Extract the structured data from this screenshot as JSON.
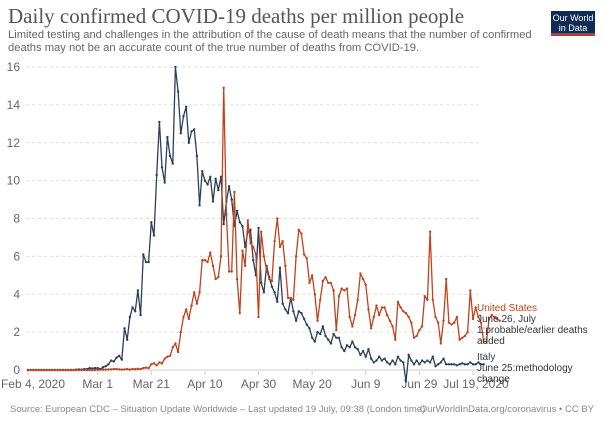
{
  "header": {
    "title": "Daily confirmed COVID-19 deaths per million people",
    "subtitle": "Limited testing and challenges in the attribution of the cause of death means that the number of confirmed deaths may not be an accurate count of the true number of deaths from COVID-19.",
    "logo_line1": "Our World",
    "logo_line2": "in Data"
  },
  "footer": {
    "source": "Source: European CDC – Situation Update Worldwide – Last updated 19 July, 09:38 (London time)",
    "link": "OurWorldInData.org/coronavirus • CC BY"
  },
  "colors": {
    "united_states": "#c0431c",
    "italy": "#2b3f5c",
    "grid": "#dddddd"
  },
  "chart_data": {
    "type": "line",
    "title": "Daily confirmed COVID-19 deaths per million people",
    "xlabel": "",
    "ylabel": "",
    "x_start": "2020-02-04",
    "x_end": "2020-07-19",
    "ylim": [
      0,
      16
    ],
    "yticks": [
      0,
      2,
      4,
      6,
      8,
      10,
      12,
      14,
      16
    ],
    "xticks": [
      {
        "label": "Feb 4, 2020",
        "day": 0
      },
      {
        "label": "Mar 1",
        "day": 26
      },
      {
        "label": "Mar 21",
        "day": 46
      },
      {
        "label": "Apr 10",
        "day": 66
      },
      {
        "label": "Apr 30",
        "day": 86
      },
      {
        "label": "May 20",
        "day": 106
      },
      {
        "label": "Jun 9",
        "day": 126
      },
      {
        "label": "Jun 29",
        "day": 146
      },
      {
        "label": "Jul 19, 2020",
        "day": 166
      }
    ],
    "grid": true,
    "series": [
      {
        "name": "Italy",
        "annotation": [
          "June 25:methodology",
          "change"
        ],
        "values": [
          0,
          0,
          0,
          0,
          0,
          0,
          0,
          0,
          0,
          0,
          0,
          0,
          0,
          0,
          0,
          0,
          0,
          0,
          0.02,
          0.03,
          0.02,
          0.05,
          0.05,
          0.1,
          0.08,
          0.1,
          0.1,
          0.05,
          0.15,
          0.2,
          0.3,
          0.5,
          0.45,
          0.65,
          0.75,
          0.55,
          2.2,
          1.6,
          2.8,
          3.3,
          3.1,
          4.2,
          2.9,
          6.1,
          5.7,
          5.7,
          7.8,
          7.1,
          10.3,
          13.1,
          10.7,
          9.9,
          12.3,
          11.3,
          10.9,
          16.0,
          14.7,
          12.5,
          13.4,
          13.9,
          12.0,
          12.6,
          12.7,
          11.3,
          8.7,
          10.5,
          10.0,
          9.8,
          10.2,
          8.9,
          10.1,
          9.5,
          10.2,
          7.7,
          8.9,
          9.7,
          9.0,
          7.6,
          8.4,
          7.8,
          7.6,
          6.5,
          7.3,
          7.4,
          5.8,
          5.0,
          7.5,
          4.6,
          4.1,
          5.5,
          4.9,
          4.4,
          4.1,
          3.6,
          5.4,
          3.5,
          3.2,
          3.0,
          3.8,
          3.1,
          2.6,
          3.1,
          3.0,
          2.7,
          2.4,
          2.2,
          1.7,
          1.5,
          2.0,
          1.9,
          2.3,
          1.8,
          1.6,
          1.4,
          1.9,
          1.7,
          1.7,
          1.2,
          1.0,
          1.3,
          1.2,
          1.5,
          1.2,
          1.1,
          0.8,
          1.0,
          0.7,
          1.1,
          0.6,
          0.4,
          0.5,
          0.7,
          0.5,
          0.6,
          0.4,
          0.3,
          0.5,
          0.3,
          0.7,
          0.5,
          0.4,
          -0.6,
          0.8,
          0.5,
          0.3,
          0.5,
          0.3,
          0.5,
          0.4,
          0.5,
          0.4,
          0.7,
          0.2,
          0.3,
          0.4,
          0.6,
          0.3,
          0.3,
          0.3,
          0.3,
          0.25,
          0.3,
          0.35,
          0.3,
          0.3,
          0.4,
          0.3,
          0.3,
          0.4,
          0.3,
          0.3
        ]
      },
      {
        "name": "United States",
        "annotation": [
          "June 26, July",
          "1:probable/earlier deaths",
          "added"
        ],
        "values": [
          0,
          0,
          0,
          0,
          0,
          0,
          0,
          0,
          0,
          0,
          0,
          0,
          0,
          0,
          0,
          0,
          0,
          0,
          0,
          0,
          0,
          0,
          0,
          0,
          0,
          0,
          0.01,
          0.01,
          0.02,
          0.02,
          0.03,
          0.03,
          0.05,
          0.05,
          0.03,
          0.02,
          0.03,
          0.05,
          0.02,
          0.05,
          0.04,
          0.06,
          0.05,
          0.1,
          0.12,
          0.1,
          0.3,
          0.35,
          0.25,
          0.4,
          0.35,
          0.6,
          0.7,
          0.75,
          1.2,
          1.4,
          0.95,
          2.0,
          2.8,
          3.2,
          2.7,
          3.4,
          4.1,
          3.5,
          4.1,
          5.8,
          5.8,
          5.7,
          6.2,
          5.5,
          4.8,
          4.9,
          6.0,
          14.9,
          8.2,
          5.2,
          5.2,
          9.4,
          4.8,
          3.0,
          6.3,
          5.5,
          7.9,
          6.7,
          6.5,
          6.1,
          2.8,
          7.3,
          6.0,
          5.3,
          4.8,
          4.7,
          6.8,
          8.0,
          6.5,
          6.8,
          5.5,
          3.8,
          3.8,
          3.7,
          6.0,
          7.4,
          7.2,
          6.1,
          5.9,
          4.6,
          5.0,
          4.0,
          2.6,
          3.7,
          4.7,
          4.9,
          4.6,
          4.6,
          4.2,
          2.1,
          3.9,
          4.3,
          4.2,
          4.3,
          2.8,
          2.3,
          2.9,
          3.7,
          5.1,
          4.8,
          4.5,
          3.2,
          2.2,
          2.8,
          3.4,
          2.9,
          3.3,
          3.3,
          2.9,
          2.6,
          2.3,
          1.6,
          3.6,
          3.3,
          3.1,
          3.0,
          2.8,
          2.5,
          1.7,
          1.8,
          2.1,
          2.3,
          3.9,
          3.7,
          7.3,
          3.7,
          2.8,
          2.5,
          1.4,
          2.6,
          4.8,
          2.5,
          2.4,
          2.5,
          2.8,
          1.6,
          1.7,
          1.8,
          2.0,
          4.2,
          2.7,
          3.3,
          2.8,
          2.5,
          1.5,
          1.5,
          2.7,
          2.9,
          2.8,
          2.7,
          2.6
        ]
      }
    ]
  }
}
